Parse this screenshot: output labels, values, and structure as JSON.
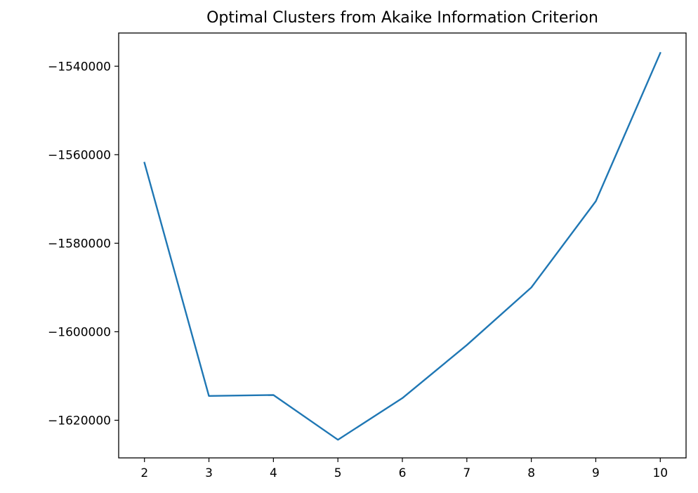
{
  "chart_data": {
    "type": "line",
    "title": "Optimal Clusters from Akaike Information Criterion",
    "xlabel": "",
    "ylabel": "",
    "x": [
      2,
      3,
      4,
      5,
      6,
      7,
      8,
      9,
      10
    ],
    "series": [
      {
        "values": [
          -1561800,
          -1614500,
          -1614300,
          -1624400,
          -1615000,
          -1603000,
          -1590000,
          -1570500,
          -1537000
        ],
        "color": "#1f77b4"
      }
    ],
    "xticks": [
      2,
      3,
      4,
      5,
      6,
      7,
      8,
      9,
      10
    ],
    "xtick_labels": [
      "2",
      "3",
      "4",
      "5",
      "6",
      "7",
      "8",
      "9",
      "10"
    ],
    "yticks": [
      -1620000,
      -1600000,
      -1580000,
      -1560000,
      -1540000
    ],
    "ytick_labels": [
      "−1620000",
      "−1600000",
      "−1580000",
      "−1560000",
      "−1540000"
    ],
    "xlim": [
      1.6,
      10.4
    ],
    "ylim": [
      -1628500,
      -1532500
    ],
    "grid": false,
    "legend": "none"
  }
}
